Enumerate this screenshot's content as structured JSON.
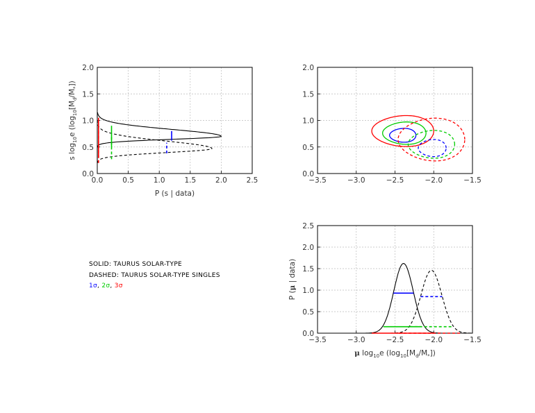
{
  "legend": {
    "solid": "SOLID:  TAURUS SOLAR-TYPE",
    "dashed": "DASHED: TAURUS SOLAR-TYPE SINGLES",
    "sigma1": "1σ",
    "sigma2": "2σ",
    "sigma3": "3σ",
    "sep": ", "
  },
  "colors": {
    "sigma1": "#0000ff",
    "sigma2": "#00cc00",
    "sigma3": "#ff0000",
    "axes": "#000000",
    "grid": "#bbbbbb"
  },
  "chart_data": [
    {
      "id": "s-posterior",
      "type": "line",
      "xlabel": "P (s | data)",
      "ylabel": "s log10e (log10[Md/M*])",
      "xlim": [
        0,
        2.5
      ],
      "ylim": [
        0,
        2.0
      ],
      "xticks": [
        "0.0",
        "0.5",
        "1.0",
        "1.5",
        "2.0",
        "2.5"
      ],
      "yticks": [
        "0.0",
        "0.5",
        "1.0",
        "1.5",
        "2.0"
      ],
      "grid": true,
      "orientation": "horizontal",
      "series": [
        {
          "style": "solid",
          "shape": "lognormal",
          "peak_s": 0.7,
          "peak_p": 2.0,
          "sigma_lo": 0.055,
          "sigma_hi": 0.13
        },
        {
          "style": "dashed",
          "shape": "lognormal",
          "peak_s": 0.47,
          "peak_p": 1.85,
          "sigma_lo": 0.075,
          "sigma_hi": 0.14
        }
      ],
      "intervals": [
        {
          "series": "solid",
          "level": "1σ",
          "p": 1.2,
          "s": [
            0.62,
            0.8
          ]
        },
        {
          "series": "solid",
          "level": "2σ",
          "p": 0.23,
          "s": [
            0.5,
            0.9
          ]
        },
        {
          "series": "solid",
          "level": "3σ",
          "p": 0.02,
          "s": [
            0.3,
            1.05
          ]
        },
        {
          "series": "dashed",
          "level": "1σ",
          "p": 1.12,
          "s": [
            0.38,
            0.58
          ]
        },
        {
          "series": "dashed",
          "level": "2σ",
          "p": 0.23,
          "s": [
            0.27,
            0.7
          ]
        },
        {
          "series": "dashed",
          "level": "3σ",
          "p": 0.02,
          "s": [
            0.2,
            0.85
          ]
        }
      ]
    },
    {
      "id": "joint-contours",
      "type": "scatter",
      "xlim": [
        -3.5,
        -1.5
      ],
      "ylim": [
        0,
        2.0
      ],
      "xticks": [
        "−3.5",
        "−3.0",
        "−2.5",
        "−2.0",
        "−1.5"
      ],
      "yticks": [
        "0.0",
        "0.5",
        "1.0",
        "1.5",
        "2.0"
      ],
      "grid": true,
      "contours": [
        {
          "series": "solid",
          "level": "1σ",
          "cx": -2.4,
          "cy": 0.72,
          "rx": 0.17,
          "ry": 0.13,
          "skew": 0.0
        },
        {
          "series": "solid",
          "level": "2σ",
          "cx": -2.38,
          "cy": 0.76,
          "rx": 0.28,
          "ry": 0.21,
          "skew": 0.0
        },
        {
          "series": "solid",
          "level": "3σ",
          "cx": -2.4,
          "cy": 0.8,
          "rx": 0.4,
          "ry": 0.29,
          "skew": 0.0
        },
        {
          "series": "dashed",
          "level": "1σ",
          "cx": -2.02,
          "cy": 0.48,
          "rx": 0.18,
          "ry": 0.16,
          "skew": 0.0
        },
        {
          "series": "dashed",
          "level": "2σ",
          "cx": -2.03,
          "cy": 0.55,
          "rx": 0.3,
          "ry": 0.26,
          "skew": 0.0
        },
        {
          "series": "dashed",
          "level": "3σ",
          "cx": -2.03,
          "cy": 0.64,
          "rx": 0.43,
          "ry": 0.4,
          "skew": 0.0
        }
      ]
    },
    {
      "id": "mu-posterior",
      "type": "line",
      "xlabel": "μ log10e (log10[Md/M*])",
      "ylabel": "P (μ | data)",
      "xlim": [
        -3.5,
        -1.5
      ],
      "ylim": [
        0,
        2.5
      ],
      "xticks": [
        "−3.5",
        "−3.0",
        "−2.5",
        "−2.0",
        "−1.5"
      ],
      "yticks": [
        "0.0",
        "0.5",
        "1.0",
        "1.5",
        "2.0",
        "2.5"
      ],
      "grid": true,
      "series": [
        {
          "style": "solid",
          "shape": "gaussian",
          "mean": -2.39,
          "sigma": 0.125,
          "peak": 1.62
        },
        {
          "style": "dashed",
          "shape": "gaussian",
          "mean": -2.03,
          "sigma": 0.135,
          "peak": 1.46
        }
      ],
      "intervals": [
        {
          "series": "solid",
          "level": "1σ",
          "y": 0.93,
          "x": [
            -2.52,
            -2.26
          ]
        },
        {
          "series": "solid",
          "level": "2σ",
          "y": 0.15,
          "x": [
            -2.65,
            -2.16
          ]
        },
        {
          "series": "solid",
          "level": "3σ",
          "y": 0.0,
          "x": [
            -2.8,
            -2.0
          ]
        },
        {
          "series": "dashed",
          "level": "1σ",
          "y": 0.85,
          "x": [
            -2.17,
            -1.89
          ]
        },
        {
          "series": "dashed",
          "level": "2σ",
          "y": 0.15,
          "x": [
            -2.31,
            -1.77
          ]
        },
        {
          "series": "dashed",
          "level": "3σ",
          "y": 0.0,
          "x": [
            -2.45,
            -1.65
          ]
        }
      ]
    }
  ]
}
